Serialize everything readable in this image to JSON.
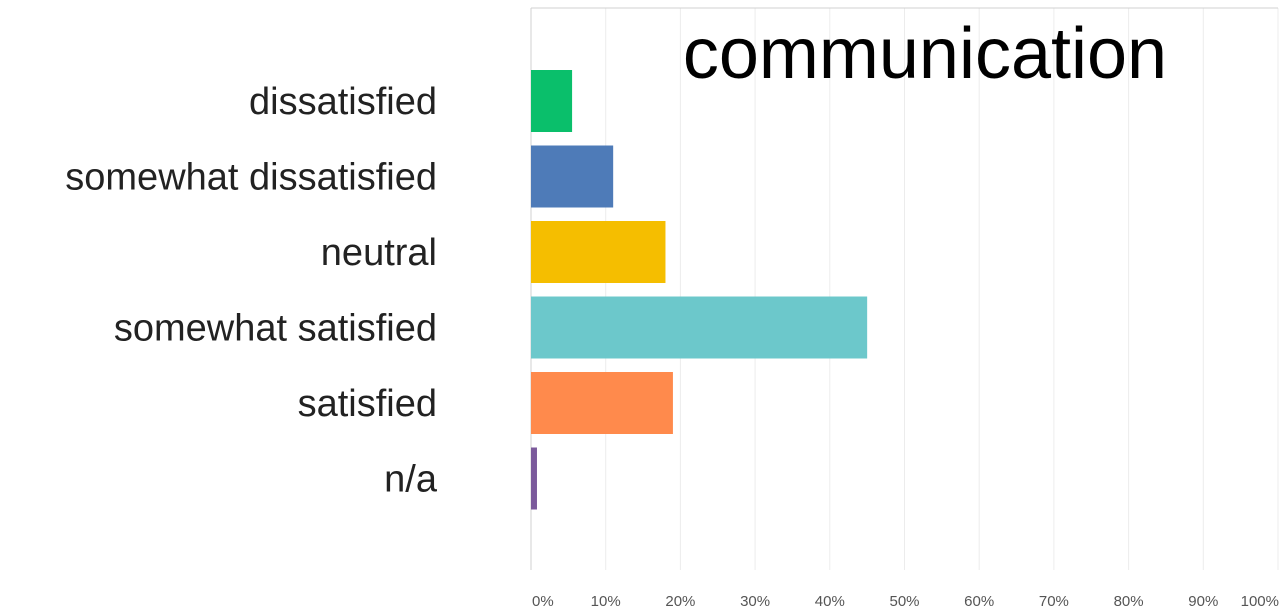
{
  "chart_data": {
    "type": "bar",
    "orientation": "horizontal",
    "title": "communication",
    "categories": [
      "dissatisfied",
      "somewhat dissatisfied",
      "neutral",
      "somewhat satisfied",
      "satisfied",
      "n/a"
    ],
    "values": [
      5.5,
      11,
      18,
      45,
      19,
      0.8
    ],
    "value_unit": "%",
    "colors": [
      "#0abf6b",
      "#4e7bb8",
      "#f5be00",
      "#6cc8cb",
      "#ff8a4c",
      "#7b5a9b"
    ],
    "xlim": [
      0,
      100
    ],
    "x_ticks": [
      "0%",
      "10%",
      "20%",
      "30%",
      "40%",
      "50%",
      "60%",
      "70%",
      "80%",
      "90%",
      "100%"
    ],
    "grid": true,
    "legend": "none"
  }
}
